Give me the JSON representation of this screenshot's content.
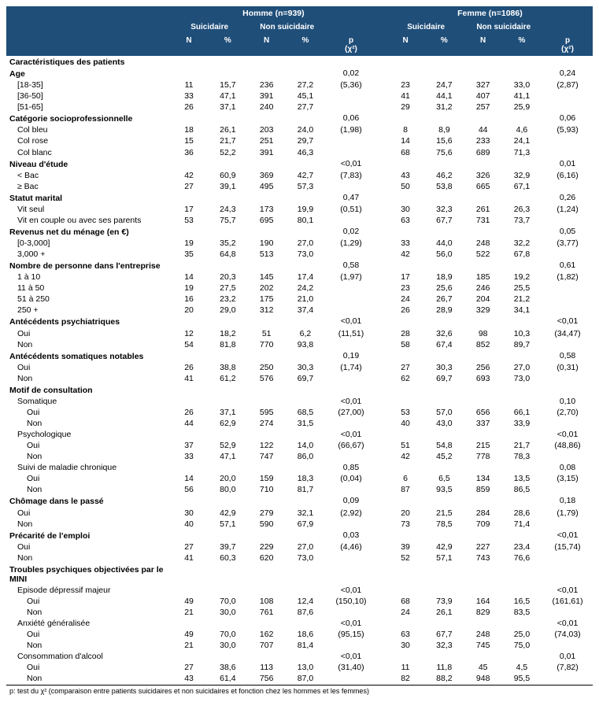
{
  "header": {
    "male_group": "Homme (n=939)",
    "female_group": "Femme (n=1086)",
    "suicidal": "Suicidaire",
    "non_suicidal": "Non suicidaire",
    "n": "N",
    "pct": "%",
    "p": "p",
    "chi2": "(χ²)"
  },
  "footnote": "p: test du χ² (comparaison entre patients suicidaires et non suicidaires et fonction chez les hommes et les femmes)",
  "sections": [
    {
      "label": "Caractéristiques des patients",
      "type": "section"
    },
    {
      "label": "Age",
      "type": "group",
      "m_p": "0,02",
      "m_chi": "(5,36)",
      "f_p": "0,24",
      "f_chi": "(2,87)",
      "rows": [
        {
          "label": "[18-35]",
          "m": [
            "11",
            "15,7",
            "236",
            "27,2"
          ],
          "f": [
            "23",
            "24,7",
            "327",
            "33,0"
          ]
        },
        {
          "label": "[36-50]",
          "m": [
            "33",
            "47,1",
            "391",
            "45,1"
          ],
          "f": [
            "41",
            "44,1",
            "407",
            "41,1"
          ]
        },
        {
          "label": "[51-65]",
          "m": [
            "26",
            "37,1",
            "240",
            "27,7"
          ],
          "f": [
            "29",
            "31,2",
            "257",
            "25,9"
          ]
        }
      ]
    },
    {
      "label": "Catégorie socioprofessionnelle",
      "type": "group",
      "m_p": "0,06",
      "m_chi": "(1,98)",
      "f_p": "0,06",
      "f_chi": "(5,93)",
      "rows": [
        {
          "label": "Col bleu",
          "m": [
            "18",
            "26,1",
            "203",
            "24,0"
          ],
          "f": [
            "8",
            "8,9",
            "44",
            "4,6"
          ]
        },
        {
          "label": "Col rose",
          "m": [
            "15",
            "21,7",
            "251",
            "29,7"
          ],
          "f": [
            "14",
            "15,6",
            "233",
            "24,1"
          ]
        },
        {
          "label": "Col blanc",
          "m": [
            "36",
            "52,2",
            "391",
            "46,3"
          ],
          "f": [
            "68",
            "75,6",
            "689",
            "71,3"
          ]
        }
      ]
    },
    {
      "label": "Niveau d'étude",
      "type": "group",
      "m_p": "<0,01",
      "m_chi": "(7,83)",
      "f_p": "0,01",
      "f_chi": "(6,16)",
      "rows": [
        {
          "label": "< Bac",
          "m": [
            "42",
            "60,9",
            "369",
            "42,7"
          ],
          "f": [
            "43",
            "46,2",
            "326",
            "32,9"
          ]
        },
        {
          "label": "≥ Bac",
          "m": [
            "27",
            "39,1",
            "495",
            "57,3"
          ],
          "f": [
            "50",
            "53,8",
            "665",
            "67,1"
          ]
        }
      ]
    },
    {
      "label": "Statut marital",
      "type": "group",
      "m_p": "0,47",
      "m_chi": "(0,51)",
      "f_p": "0,26",
      "f_chi": "(1,24)",
      "rows": [
        {
          "label": "Vit seul",
          "m": [
            "17",
            "24,3",
            "173",
            "19,9"
          ],
          "f": [
            "30",
            "32,3",
            "261",
            "26,3"
          ]
        },
        {
          "label": "Vit en couple ou avec ses parents",
          "m": [
            "53",
            "75,7",
            "695",
            "80,1"
          ],
          "f": [
            "63",
            "67,7",
            "731",
            "73,7"
          ]
        }
      ]
    },
    {
      "label": "Revenus net du ménage (en €)",
      "type": "group",
      "m_p": "0,02",
      "m_chi": "(1,29)",
      "f_p": "0,05",
      "f_chi": "(3,77)",
      "rows": [
        {
          "label": "[0-3,000]",
          "m": [
            "19",
            "35,2",
            "190",
            "27,0"
          ],
          "f": [
            "33",
            "44,0",
            "248",
            "32,2"
          ]
        },
        {
          "label": "3,000 +",
          "m": [
            "35",
            "64,8",
            "513",
            "73,0"
          ],
          "f": [
            "42",
            "56,0",
            "522",
            "67,8"
          ]
        }
      ]
    },
    {
      "label": "Nombre de personne dans l'entreprise",
      "type": "group",
      "m_p": "0,58",
      "m_chi": "(1,97)",
      "f_p": "0,61",
      "f_chi": "(1,82)",
      "rows": [
        {
          "label": "1 à 10",
          "m": [
            "14",
            "20,3",
            "145",
            "17,4"
          ],
          "f": [
            "17",
            "18,9",
            "185",
            "19,2"
          ]
        },
        {
          "label": "11 à 50",
          "m": [
            "19",
            "27,5",
            "202",
            "24,2"
          ],
          "f": [
            "23",
            "25,6",
            "246",
            "25,5"
          ]
        },
        {
          "label": "51 à 250",
          "m": [
            "16",
            "23,2",
            "175",
            "21,0"
          ],
          "f": [
            "24",
            "26,7",
            "204",
            "21,2"
          ]
        },
        {
          "label": "250 +",
          "m": [
            "20",
            "29,0",
            "312",
            "37,4"
          ],
          "f": [
            "26",
            "28,9",
            "329",
            "34,1"
          ]
        }
      ]
    },
    {
      "label": "Antécédents psychiatriques",
      "type": "group",
      "m_p": "<0,01",
      "m_chi": "(11,51)",
      "f_p": "<0,01",
      "f_chi": "(34,47)",
      "rows": [
        {
          "label": "Oui",
          "m": [
            "12",
            "18,2",
            "51",
            "6,2"
          ],
          "f": [
            "28",
            "32,6",
            "98",
            "10,3"
          ]
        },
        {
          "label": "Non",
          "m": [
            "54",
            "81,8",
            "770",
            "93,8"
          ],
          "f": [
            "58",
            "67,4",
            "852",
            "89,7"
          ]
        }
      ]
    },
    {
      "label": "Antécédents somatiques notables",
      "type": "group",
      "m_p": "0,19",
      "m_chi": "(1,74)",
      "f_p": "0,58",
      "f_chi": "(0,31)",
      "rows": [
        {
          "label": "Oui",
          "m": [
            "26",
            "38,8",
            "250",
            "30,3"
          ],
          "f": [
            "27",
            "30,3",
            "256",
            "27,0"
          ]
        },
        {
          "label": "Non",
          "m": [
            "41",
            "61,2",
            "576",
            "69,7"
          ],
          "f": [
            "62",
            "69,7",
            "693",
            "73,0"
          ]
        }
      ]
    },
    {
      "label": "Motif de consultation",
      "type": "group",
      "m_p": "",
      "m_chi": "",
      "f_p": "",
      "f_chi": "",
      "rows": [
        {
          "label": "Somatique",
          "m": [
            "",
            "",
            "",
            ""
          ],
          "f": [
            "",
            "",
            "",
            ""
          ],
          "sub_p": {
            "m_p": "<0,01",
            "m_chi": "(27,00)",
            "f_p": "0,10",
            "f_chi": "(2,70)"
          }
        },
        {
          "label": "Oui",
          "indent": 2,
          "m": [
            "26",
            "37,1",
            "595",
            "68,5"
          ],
          "f": [
            "53",
            "57,0",
            "656",
            "66,1"
          ]
        },
        {
          "label": "Non",
          "indent": 2,
          "m": [
            "44",
            "62,9",
            "274",
            "31,5"
          ],
          "f": [
            "40",
            "43,0",
            "337",
            "33,9"
          ]
        },
        {
          "label": "Psychologique",
          "m": [
            "",
            "",
            "",
            ""
          ],
          "f": [
            "",
            "",
            "",
            ""
          ],
          "sub_p": {
            "m_p": "<0,01",
            "m_chi": "(66,67)",
            "f_p": "<0,01",
            "f_chi": "(48,86)"
          }
        },
        {
          "label": "Oui",
          "indent": 2,
          "m": [
            "37",
            "52,9",
            "122",
            "14,0"
          ],
          "f": [
            "51",
            "54,8",
            "215",
            "21,7"
          ]
        },
        {
          "label": "Non",
          "indent": 2,
          "m": [
            "33",
            "47,1",
            "747",
            "86,0"
          ],
          "f": [
            "42",
            "45,2",
            "778",
            "78,3"
          ]
        },
        {
          "label": "Suivi de maladie chronique",
          "m": [
            "",
            "",
            "",
            ""
          ],
          "f": [
            "",
            "",
            "",
            ""
          ],
          "sub_p": {
            "m_p": "0,85",
            "m_chi": "(0,04)",
            "f_p": "0,08",
            "f_chi": "(3,15)"
          }
        },
        {
          "label": "Oui",
          "indent": 2,
          "m": [
            "14",
            "20,0",
            "159",
            "18,3"
          ],
          "f": [
            "6",
            "6,5",
            "134",
            "13,5"
          ]
        },
        {
          "label": "Non",
          "indent": 2,
          "m": [
            "56",
            "80,0",
            "710",
            "81,7"
          ],
          "f": [
            "87",
            "93,5",
            "859",
            "86,5"
          ]
        }
      ]
    },
    {
      "label": "Chômage dans le passé",
      "type": "group",
      "m_p": "0,09",
      "m_chi": "(2,92)",
      "f_p": "0,18",
      "f_chi": "(1,79)",
      "rows": [
        {
          "label": "Oui",
          "m": [
            "30",
            "42,9",
            "279",
            "32,1"
          ],
          "f": [
            "20",
            "21,5",
            "284",
            "28,6"
          ]
        },
        {
          "label": "Non",
          "m": [
            "40",
            "57,1",
            "590",
            "67,9"
          ],
          "f": [
            "73",
            "78,5",
            "709",
            "71,4"
          ]
        }
      ]
    },
    {
      "label": "Précarité de l'emploi",
      "type": "group",
      "m_p": "0,03",
      "m_chi": "(4,46)",
      "f_p": "<0,01",
      "f_chi": "(15,74)",
      "rows": [
        {
          "label": "Oui",
          "m": [
            "27",
            "39,7",
            "229",
            "27,0"
          ],
          "f": [
            "39",
            "42,9",
            "227",
            "23,4"
          ]
        },
        {
          "label": "Non",
          "m": [
            "41",
            "60,3",
            "620",
            "73,0"
          ],
          "f": [
            "52",
            "57,1",
            "743",
            "76,6"
          ]
        }
      ]
    },
    {
      "label": "Troubles psychiques objectivées par le MINI",
      "type": "group",
      "m_p": "",
      "m_chi": "",
      "f_p": "",
      "f_chi": "",
      "rows": [
        {
          "label": "Episode dépressif majeur",
          "m": [
            "",
            "",
            "",
            ""
          ],
          "f": [
            "",
            "",
            "",
            ""
          ],
          "sub_p": {
            "m_p": "<0,01",
            "m_chi": "(150,10)",
            "f_p": "<0,01",
            "f_chi": "(161,61)"
          }
        },
        {
          "label": "Oui",
          "indent": 2,
          "m": [
            "49",
            "70,0",
            "108",
            "12,4"
          ],
          "f": [
            "68",
            "73,9",
            "164",
            "16,5"
          ]
        },
        {
          "label": "Non",
          "indent": 2,
          "m": [
            "21",
            "30,0",
            "761",
            "87,6"
          ],
          "f": [
            "24",
            "26,1",
            "829",
            "83,5"
          ]
        },
        {
          "label": "Anxiété généralisée",
          "m": [
            "",
            "",
            "",
            ""
          ],
          "f": [
            "",
            "",
            "",
            ""
          ],
          "sub_p": {
            "m_p": "<0,01",
            "m_chi": "(95,15)",
            "f_p": "<0,01",
            "f_chi": "(74,03)"
          }
        },
        {
          "label": "Oui",
          "indent": 2,
          "m": [
            "49",
            "70,0",
            "162",
            "18,6"
          ],
          "f": [
            "63",
            "67,7",
            "248",
            "25,0"
          ]
        },
        {
          "label": "Non",
          "indent": 2,
          "m": [
            "21",
            "30,0",
            "707",
            "81,4"
          ],
          "f": [
            "30",
            "32,3",
            "745",
            "75,0"
          ]
        },
        {
          "label": "Consommation d'alcool",
          "m": [
            "",
            "",
            "",
            ""
          ],
          "f": [
            "",
            "",
            "",
            ""
          ],
          "sub_p": {
            "m_p": "<0,01",
            "m_chi": "(31,40)",
            "f_p": "0,01",
            "f_chi": "(7,82)"
          }
        },
        {
          "label": "Oui",
          "indent": 2,
          "m": [
            "27",
            "38,6",
            "113",
            "13,0"
          ],
          "f": [
            "11",
            "11,8",
            "45",
            "4,5"
          ]
        },
        {
          "label": "Non",
          "indent": 2,
          "m": [
            "43",
            "61,4",
            "756",
            "87,0"
          ],
          "f": [
            "82",
            "88,2",
            "948",
            "95,5"
          ]
        }
      ]
    }
  ]
}
